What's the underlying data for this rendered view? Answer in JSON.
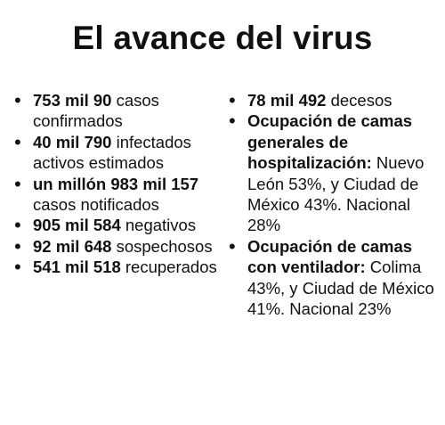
{
  "title": "El avance del virus",
  "left_items": [
    {
      "bold": "753 mil 90",
      "rest": " casos confirmados"
    },
    {
      "bold": "40 mil 790",
      "rest": " infectados activos estimados"
    },
    {
      "bold": "un millón 983 mil 157",
      "rest": " casos notificados"
    },
    {
      "bold": "905 mil 584",
      "rest": " negativos"
    },
    {
      "bold": "92 mil 648",
      "rest": " sospechosos"
    },
    {
      "bold": "541 mil 518",
      "rest": " recuperados"
    }
  ],
  "right_items": [
    {
      "bold": "78 mil 492",
      "rest": " decesos"
    },
    {
      "bold": "Ocupación de camas generales de hospitalización:",
      "rest": " Nuevo León 53%, y Ciudad de México 43%. Nacional 28%"
    },
    {
      "bold": "Ocupación de camas con ventilador:",
      "rest": " Colima 43%, y Ciudad de México 41%. Nacional 23%"
    }
  ],
  "bullet_glyph": "•"
}
